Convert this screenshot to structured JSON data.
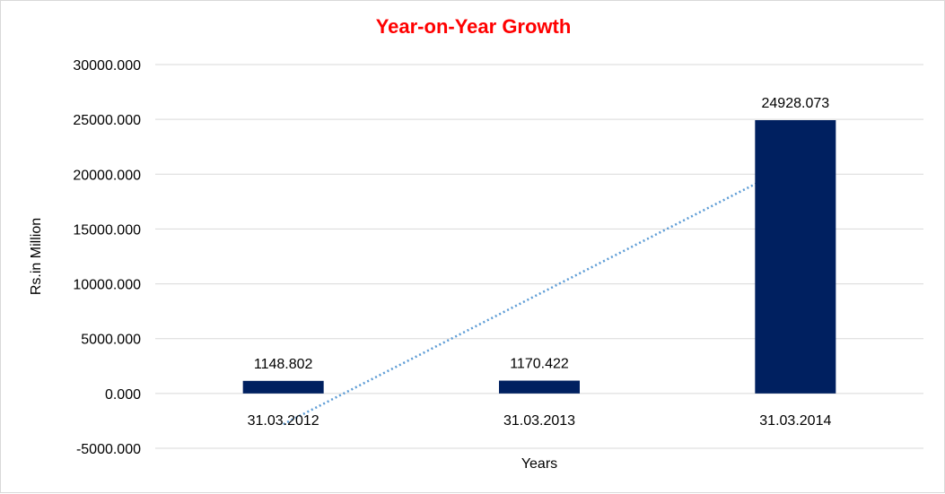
{
  "chart_data": {
    "type": "bar",
    "title": "Year-on-Year Growth",
    "xlabel": "Years",
    "ylabel": "Rs.in Million",
    "categories": [
      "31.03.2012",
      "31.03.2013",
      "31.03.2014"
    ],
    "values": [
      1148.802,
      1170.422,
      24928.073
    ],
    "data_labels": [
      "1148.802",
      "1170.422",
      "24928.073"
    ],
    "ylim": [
      -5000,
      30000
    ],
    "yticks": [
      -5000,
      0,
      5000,
      10000,
      15000,
      20000,
      25000,
      30000
    ],
    "ytick_labels": [
      "-5000.000",
      "0.000",
      "5000.000",
      "10000.000",
      "15000.000",
      "20000.000",
      "25000.000",
      "30000.000"
    ],
    "grid": true,
    "legend": "none",
    "trendline": {
      "type": "linear",
      "style": "dotted"
    },
    "colors": {
      "bar": "#002060",
      "trendline": "#5b9bd5",
      "title": "#ff0000",
      "grid": "#d9d9d9"
    }
  }
}
